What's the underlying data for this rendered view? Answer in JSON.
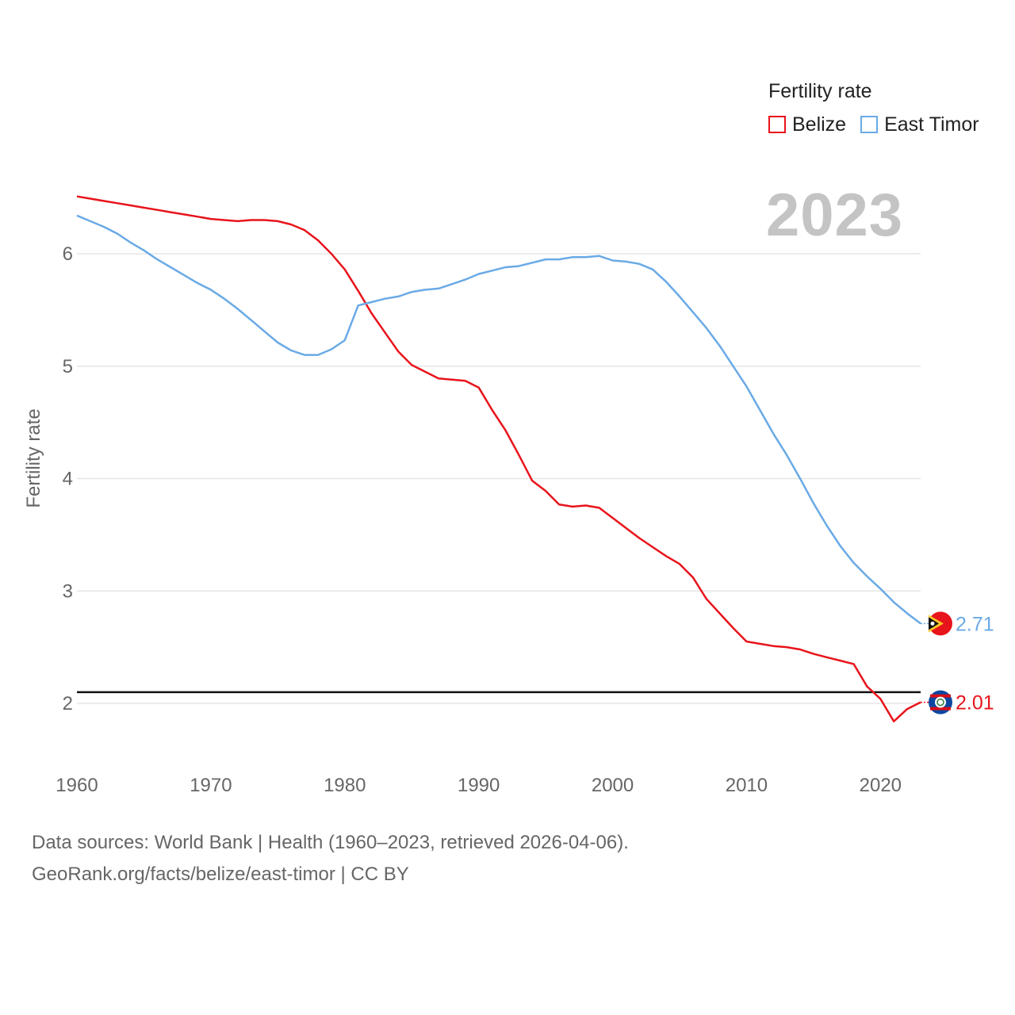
{
  "legend": {
    "title": "Fertility rate",
    "items": [
      {
        "label": "Belize",
        "color": "#e8141b"
      },
      {
        "label": "East Timor",
        "color": "#6aaae6"
      }
    ]
  },
  "year_display": "2023",
  "source": {
    "line1": "Data sources: World Bank | Health (1960–2023, retrieved 2026-04-06).",
    "line2": "GeoRank.org/facts/belize/east-timor | CC BY"
  },
  "chart_data": {
    "type": "line",
    "title": "Fertility rate",
    "xlabel": "",
    "ylabel": "Fertility rate",
    "xlim": [
      1960,
      2023
    ],
    "ylim": [
      1.5,
      6.8
    ],
    "xticks": [
      "1960",
      "1970",
      "1980",
      "1990",
      "2000",
      "2010",
      "2020"
    ],
    "yticks": [
      "2",
      "3",
      "4",
      "5",
      "6"
    ],
    "grid": true,
    "reference_line": {
      "y": 2.1,
      "color": "#111111"
    },
    "x": [
      1960,
      1961,
      1962,
      1963,
      1964,
      1965,
      1966,
      1967,
      1968,
      1969,
      1970,
      1971,
      1972,
      1973,
      1974,
      1975,
      1976,
      1977,
      1978,
      1979,
      1980,
      1981,
      1982,
      1983,
      1984,
      1985,
      1986,
      1987,
      1988,
      1989,
      1990,
      1991,
      1992,
      1993,
      1994,
      1995,
      1996,
      1997,
      1998,
      1999,
      2000,
      2001,
      2002,
      2003,
      2004,
      2005,
      2006,
      2007,
      2008,
      2009,
      2010,
      2011,
      2012,
      2013,
      2014,
      2015,
      2016,
      2017,
      2018,
      2019,
      2020,
      2021,
      2022,
      2023
    ],
    "series": [
      {
        "name": "Belize",
        "color": "#e8141b",
        "end_label": "2.01",
        "values": [
          6.51,
          6.49,
          6.47,
          6.45,
          6.43,
          6.41,
          6.39,
          6.37,
          6.35,
          6.33,
          6.31,
          6.3,
          6.29,
          6.3,
          6.3,
          6.29,
          6.26,
          6.21,
          6.12,
          6.0,
          5.86,
          5.67,
          5.47,
          5.3,
          5.13,
          5.01,
          4.95,
          4.89,
          4.88,
          4.87,
          4.81,
          4.61,
          4.43,
          4.21,
          3.98,
          3.89,
          3.77,
          3.75,
          3.76,
          3.74,
          3.65,
          3.56,
          3.47,
          3.39,
          3.31,
          3.24,
          3.12,
          2.93,
          2.8,
          2.67,
          2.55,
          2.53,
          2.51,
          2.5,
          2.48,
          2.44,
          2.41,
          2.38,
          2.35,
          2.15,
          2.04,
          1.84,
          1.95,
          2.01
        ]
      },
      {
        "name": "East Timor",
        "color": "#6aaae6",
        "end_label": "2.71",
        "values": [
          6.34,
          6.29,
          6.24,
          6.18,
          6.1,
          6.03,
          5.95,
          5.88,
          5.81,
          5.74,
          5.68,
          5.6,
          5.51,
          5.41,
          5.31,
          5.21,
          5.14,
          5.1,
          5.1,
          5.15,
          5.23,
          5.54,
          5.57,
          5.6,
          5.62,
          5.66,
          5.68,
          5.69,
          5.73,
          5.77,
          5.82,
          5.85,
          5.88,
          5.89,
          5.92,
          5.95,
          5.95,
          5.97,
          5.97,
          5.98,
          5.94,
          5.93,
          5.91,
          5.86,
          5.75,
          5.62,
          5.48,
          5.34,
          5.18,
          5.0,
          4.82,
          4.61,
          4.4,
          4.21,
          4.0,
          3.78,
          3.58,
          3.4,
          3.25,
          3.13,
          3.02,
          2.9,
          2.8,
          2.71
        ]
      }
    ]
  }
}
